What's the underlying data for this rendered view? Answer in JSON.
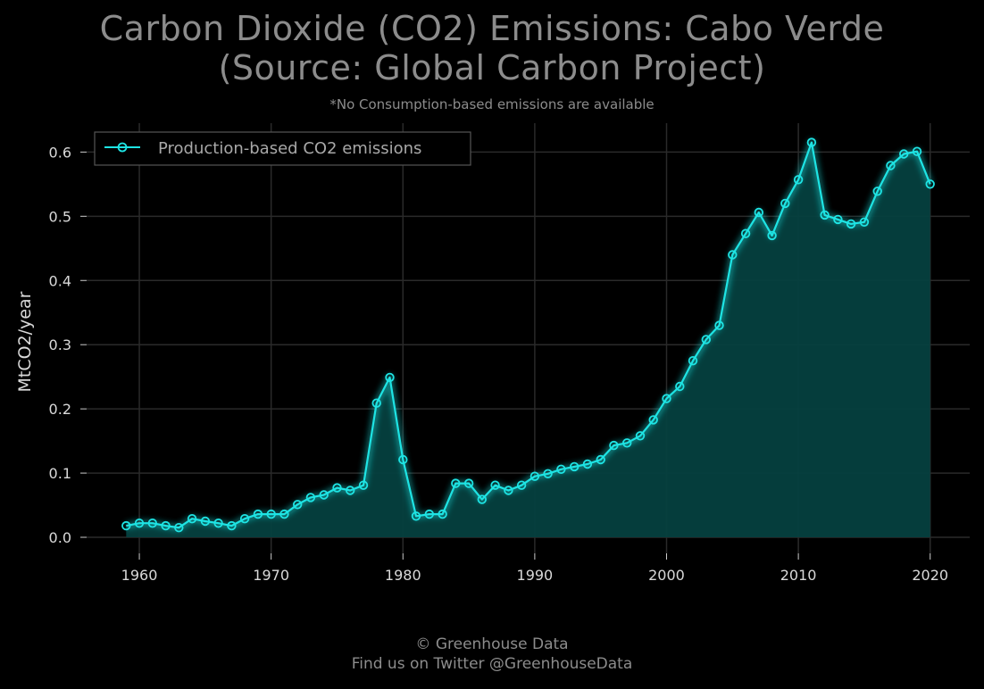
{
  "title_line1": "Carbon Dioxide (CO2) Emissions: Cabo Verde",
  "title_line2": "(Source: Global Carbon Project)",
  "subtitle": "*No Consumption-based emissions are available",
  "footer_line1": "© Greenhouse Data",
  "footer_line2": "Find us on Twitter @GreenhouseData",
  "colors": {
    "line": "#1ee4e4",
    "fill": "#05403f",
    "grid": "#2a2a2a",
    "background": "#000000",
    "text": "#8c8c8c"
  },
  "chart_data": {
    "type": "area",
    "ylabel": "MtCO2/year",
    "xlabel": "",
    "xlim": [
      1956,
      2023
    ],
    "ylim": [
      -0.025,
      0.645
    ],
    "xticks": [
      1960,
      1970,
      1980,
      1990,
      2000,
      2010,
      2020
    ],
    "yticks": [
      0.0,
      0.1,
      0.2,
      0.3,
      0.4,
      0.5,
      0.6
    ],
    "ytick_labels": [
      "0.0",
      "0.1",
      "0.2",
      "0.3",
      "0.4",
      "0.5",
      "0.6"
    ],
    "grid": true,
    "legend_position": "top-left",
    "series": [
      {
        "name": "Production-based CO2 emissions",
        "marker": "circle-open",
        "x": [
          1959,
          1960,
          1961,
          1962,
          1963,
          1964,
          1965,
          1966,
          1967,
          1968,
          1969,
          1970,
          1971,
          1972,
          1973,
          1974,
          1975,
          1976,
          1977,
          1978,
          1979,
          1980,
          1981,
          1982,
          1983,
          1984,
          1985,
          1986,
          1987,
          1988,
          1989,
          1990,
          1991,
          1992,
          1993,
          1994,
          1995,
          1996,
          1997,
          1998,
          1999,
          2000,
          2001,
          2002,
          2003,
          2004,
          2005,
          2006,
          2007,
          2008,
          2009,
          2010,
          2011,
          2012,
          2013,
          2014,
          2015,
          2016,
          2017,
          2018,
          2019,
          2020
        ],
        "y": [
          0.018,
          0.022,
          0.022,
          0.018,
          0.015,
          0.029,
          0.025,
          0.022,
          0.018,
          0.029,
          0.036,
          0.036,
          0.036,
          0.051,
          0.062,
          0.066,
          0.077,
          0.073,
          0.081,
          0.209,
          0.249,
          0.121,
          0.033,
          0.036,
          0.036,
          0.084,
          0.084,
          0.059,
          0.081,
          0.073,
          0.081,
          0.095,
          0.099,
          0.106,
          0.11,
          0.114,
          0.121,
          0.143,
          0.147,
          0.158,
          0.183,
          0.216,
          0.235,
          0.275,
          0.308,
          0.33,
          0.44,
          0.473,
          0.506,
          0.47,
          0.52,
          0.557,
          0.615,
          0.502,
          0.495,
          0.488,
          0.491,
          0.539,
          0.579,
          0.597,
          0.601,
          0.55
        ]
      }
    ]
  }
}
